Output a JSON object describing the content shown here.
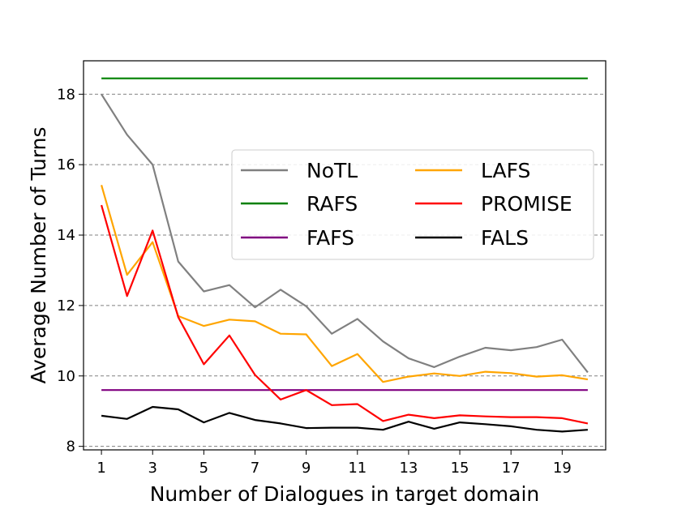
{
  "chart_data": {
    "type": "line",
    "title": "",
    "xlabel": "Number of Dialogues in target domain",
    "ylabel": "Average Number of Turns",
    "xlim": [
      0.3,
      20.7
    ],
    "ylim": [
      7.9,
      18.95
    ],
    "x_ticks": [
      1,
      3,
      5,
      7,
      9,
      11,
      13,
      15,
      17,
      19
    ],
    "y_ticks": [
      8,
      10,
      12,
      14,
      16,
      18
    ],
    "x_tick_labels": [
      "1",
      "3",
      "5",
      "7",
      "9",
      "11",
      "13",
      "15",
      "17",
      "19"
    ],
    "y_tick_labels": [
      "8",
      "10",
      "12",
      "14",
      "16",
      "18"
    ],
    "grid": "horizontal dashed",
    "legend_position": "upper-right",
    "x": [
      1,
      2,
      3,
      4,
      5,
      6,
      7,
      8,
      9,
      10,
      11,
      12,
      13,
      14,
      15,
      16,
      17,
      18,
      19,
      20
    ],
    "series": [
      {
        "name": "NoTL",
        "color": "#808080",
        "values": [
          18.0,
          16.85,
          16.0,
          13.25,
          12.4,
          12.58,
          11.95,
          12.45,
          11.98,
          11.2,
          11.62,
          10.98,
          10.5,
          10.25,
          10.55,
          10.8,
          10.73,
          10.82,
          11.03,
          10.1
        ]
      },
      {
        "name": "RAFS",
        "color": "#008000",
        "values": [
          18.45,
          18.45,
          18.45,
          18.45,
          18.45,
          18.45,
          18.45,
          18.45,
          18.45,
          18.45,
          18.45,
          18.45,
          18.45,
          18.45,
          18.45,
          18.45,
          18.45,
          18.45,
          18.45,
          18.45
        ]
      },
      {
        "name": "FAFS",
        "color": "#800080",
        "values": [
          9.6,
          9.6,
          9.6,
          9.6,
          9.6,
          9.6,
          9.6,
          9.6,
          9.6,
          9.6,
          9.6,
          9.6,
          9.6,
          9.6,
          9.6,
          9.6,
          9.6,
          9.6,
          9.6,
          9.6
        ]
      },
      {
        "name": "LAFS",
        "color": "#FFA500",
        "values": [
          15.42,
          12.87,
          13.8,
          11.7,
          11.42,
          11.6,
          11.55,
          11.2,
          11.18,
          10.28,
          10.62,
          9.83,
          9.98,
          10.07,
          10.0,
          10.12,
          10.08,
          9.98,
          10.02,
          9.9
        ]
      },
      {
        "name": "PROMISE",
        "color": "#FF0000",
        "values": [
          14.85,
          12.27,
          14.13,
          11.67,
          10.33,
          11.15,
          10.03,
          9.33,
          9.6,
          9.17,
          9.2,
          8.72,
          8.9,
          8.8,
          8.88,
          8.85,
          8.83,
          8.83,
          8.8,
          8.65
        ]
      },
      {
        "name": "FALS",
        "color": "#000000",
        "values": [
          8.87,
          8.78,
          9.12,
          9.05,
          8.68,
          8.95,
          8.75,
          8.65,
          8.52,
          8.53,
          8.53,
          8.47,
          8.7,
          8.5,
          8.68,
          8.63,
          8.57,
          8.47,
          8.42,
          8.47
        ]
      }
    ],
    "legend": {
      "columns": [
        [
          "NoTL",
          "RAFS",
          "FAFS"
        ],
        [
          "LAFS",
          "PROMISE",
          "FALS"
        ]
      ]
    }
  }
}
